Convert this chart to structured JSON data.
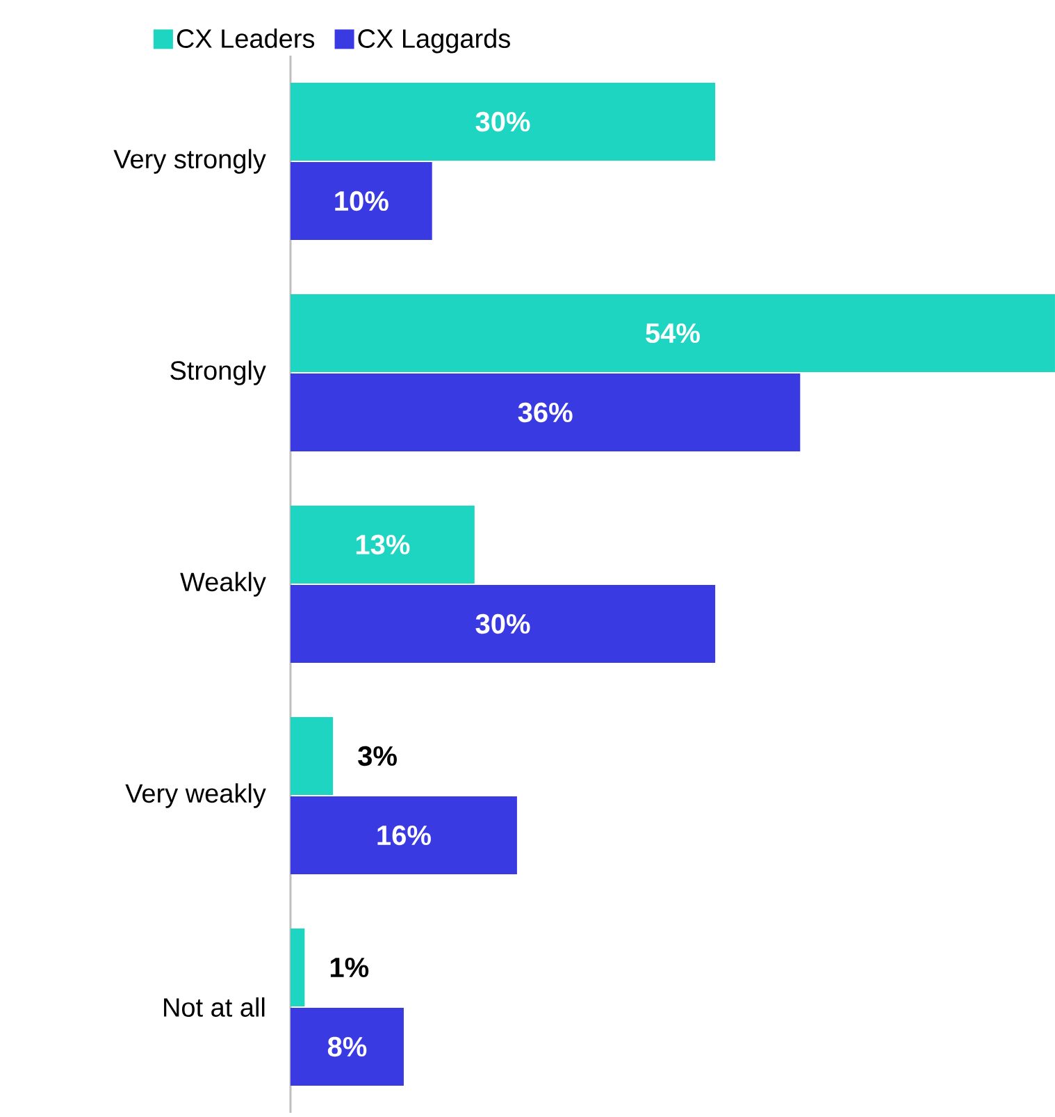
{
  "chart_data": {
    "type": "bar",
    "orientation": "horizontal",
    "categories": [
      "Very strongly",
      "Strongly",
      "Weakly",
      "Very weakly",
      "Not at all"
    ],
    "series": [
      {
        "name": "CX Leaders",
        "color": "#1ed5c2",
        "values": [
          30,
          54,
          13,
          3,
          1
        ],
        "value_labels": [
          "30%",
          "54%",
          "13%",
          "3%",
          "1%"
        ]
      },
      {
        "name": "CX Laggards",
        "color": "#3a3ae2",
        "values": [
          10,
          36,
          30,
          16,
          8
        ],
        "value_labels": [
          "10%",
          "36%",
          "30%",
          "16%",
          "8%"
        ]
      }
    ],
    "legend": "top left",
    "tick_labels": "y"
  }
}
